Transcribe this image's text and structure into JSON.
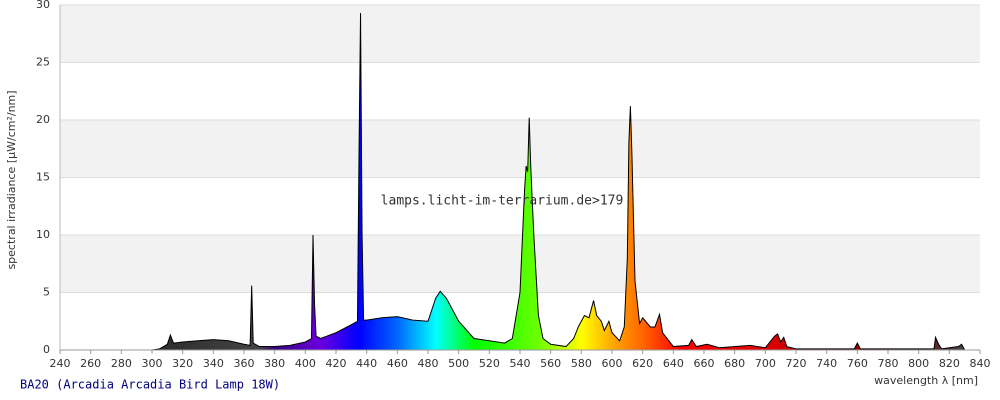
{
  "chart_data": {
    "type": "area",
    "ylabel": "spectral irradiance [µW/cm²/nm]",
    "xlabel": "wavelength λ [nm]",
    "watermark": "lamps.licht-im-terrarium.de>179",
    "caption": "BA20 (Arcadia Arcadia Bird Lamp 18W)",
    "xlim": [
      240,
      840
    ],
    "xticks": [
      240,
      260,
      280,
      300,
      320,
      340,
      360,
      380,
      400,
      420,
      440,
      460,
      480,
      500,
      520,
      540,
      560,
      580,
      600,
      620,
      640,
      660,
      680,
      700,
      720,
      740,
      760,
      780,
      800,
      820,
      840
    ],
    "ylim": [
      0,
      30
    ],
    "yticks": [
      0,
      5,
      10,
      15,
      20,
      25,
      30
    ],
    "grid": true,
    "band_color": "#f2f2f2",
    "line_color": "#000000",
    "color_stops": [
      {
        "x": 300,
        "color": "#2b2b2b"
      },
      {
        "x": 370,
        "color": "#444444"
      },
      {
        "x": 380,
        "color": "#3a0080"
      },
      {
        "x": 410,
        "color": "#6a00e0"
      },
      {
        "x": 435,
        "color": "#0000ff"
      },
      {
        "x": 460,
        "color": "#0066ff"
      },
      {
        "x": 485,
        "color": "#00ffff"
      },
      {
        "x": 510,
        "color": "#00ff00"
      },
      {
        "x": 550,
        "color": "#66ff00"
      },
      {
        "x": 580,
        "color": "#ffff00"
      },
      {
        "x": 600,
        "color": "#ffaa00"
      },
      {
        "x": 620,
        "color": "#ff6600"
      },
      {
        "x": 645,
        "color": "#ff0000"
      },
      {
        "x": 700,
        "color": "#e00000"
      },
      {
        "x": 780,
        "color": "#800000"
      },
      {
        "x": 830,
        "color": "#444444"
      }
    ],
    "x": [
      300,
      305,
      310,
      312,
      314,
      320,
      330,
      340,
      350,
      360,
      364,
      365,
      366,
      370,
      380,
      390,
      400,
      404,
      405,
      406,
      407,
      410,
      420,
      430,
      434,
      435,
      436,
      437,
      438,
      440,
      450,
      460,
      470,
      480,
      485,
      488,
      492,
      500,
      510,
      520,
      530,
      535,
      540,
      543,
      544,
      545,
      546,
      547,
      549,
      552,
      555,
      560,
      570,
      575,
      578,
      582,
      585,
      587,
      588,
      590,
      593,
      595,
      598,
      600,
      605,
      608,
      610,
      611,
      612,
      613,
      615,
      618,
      620,
      625,
      628,
      631,
      633,
      640,
      650,
      652,
      655,
      662,
      670,
      690,
      700,
      706,
      708,
      710,
      712,
      714,
      720,
      758,
      760,
      762,
      780,
      810,
      811,
      813,
      815,
      820,
      826,
      828,
      830
    ],
    "values": [
      0,
      0.1,
      0.5,
      1.3,
      0.6,
      0.7,
      0.8,
      0.9,
      0.8,
      0.5,
      0.4,
      5.6,
      0.6,
      0.3,
      0.3,
      0.4,
      0.7,
      1.0,
      10.0,
      4,
      1.2,
      1.0,
      1.5,
      2.2,
      2.5,
      17,
      29.3,
      10,
      2.6,
      2.6,
      2.8,
      2.9,
      2.6,
      2.5,
      4.5,
      5.1,
      4.5,
      2.5,
      1.0,
      0.8,
      0.6,
      1.0,
      5,
      14,
      16,
      15.5,
      20.2,
      16,
      10,
      3,
      1,
      0.5,
      0.3,
      1,
      2,
      3,
      2.8,
      3.8,
      4.3,
      3,
      2.5,
      1.7,
      2.5,
      1.5,
      0.8,
      2,
      8,
      18,
      21.2,
      17,
      6,
      2.3,
      2.8,
      2,
      2,
      3.1,
      1.5,
      0.3,
      0.4,
      0.9,
      0.3,
      0.5,
      0.2,
      0.4,
      0.2,
      1.2,
      1.4,
      0.7,
      1.1,
      0.3,
      0.1,
      0.1,
      0.6,
      0.1,
      0.1,
      0.1,
      1.1,
      0.5,
      0.1,
      0.2,
      0.3,
      0.5,
      0
    ]
  }
}
